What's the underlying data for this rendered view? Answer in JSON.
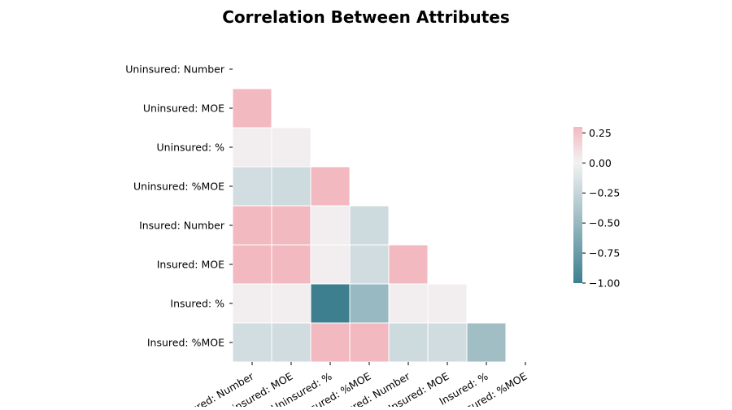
{
  "chart_data": {
    "type": "heatmap",
    "title": "Correlation Between Attributes",
    "xlabel": "",
    "ylabel": "",
    "mask": "upper triangle including diagonal",
    "rows": [
      "Uninsured: Number",
      "Uninsured: MOE",
      "Uninsured: %",
      "Uninsured: %MOE",
      "Insured: Number",
      "Insured: MOE",
      "Insured: %",
      "Insured: %MOE"
    ],
    "columns": [
      "Uninsured: Number",
      "Uninsured: MOE",
      "Uninsured: %",
      "Uninsured: %MOE",
      "Insured: Number",
      "Insured: MOE",
      "Insured: %",
      "Insured: %MOE"
    ],
    "values": [
      [
        null,
        null,
        null,
        null,
        null,
        null,
        null,
        null
      ],
      [
        0.3,
        null,
        null,
        null,
        null,
        null,
        null,
        null
      ],
      [
        0.02,
        0.02,
        null,
        null,
        null,
        null,
        null,
        null
      ],
      [
        -0.18,
        -0.2,
        0.3,
        null,
        null,
        null,
        null,
        null
      ],
      [
        0.3,
        0.3,
        0.02,
        -0.2,
        null,
        null,
        null,
        null
      ],
      [
        0.3,
        0.3,
        0.02,
        -0.19,
        0.3,
        null,
        null,
        null
      ],
      [
        0.02,
        0.02,
        -1.0,
        -0.5,
        0.02,
        0.02,
        null,
        null
      ],
      [
        -0.18,
        -0.19,
        0.3,
        0.3,
        -0.2,
        -0.19,
        -0.45,
        null
      ]
    ],
    "colorbar": {
      "vmin": -1.0,
      "vmax": 0.3,
      "ticks": [
        0.25,
        0.0,
        -0.25,
        -0.5,
        -0.75,
        -1.0
      ],
      "tick_labels": [
        "0.25",
        "0.00",
        "−0.25",
        "−0.50",
        "−0.75",
        "−1.00"
      ],
      "colors": {
        "negative": "#3d7f8f",
        "center": "#f2f2f2",
        "positive": "#f2b9c0"
      }
    }
  }
}
